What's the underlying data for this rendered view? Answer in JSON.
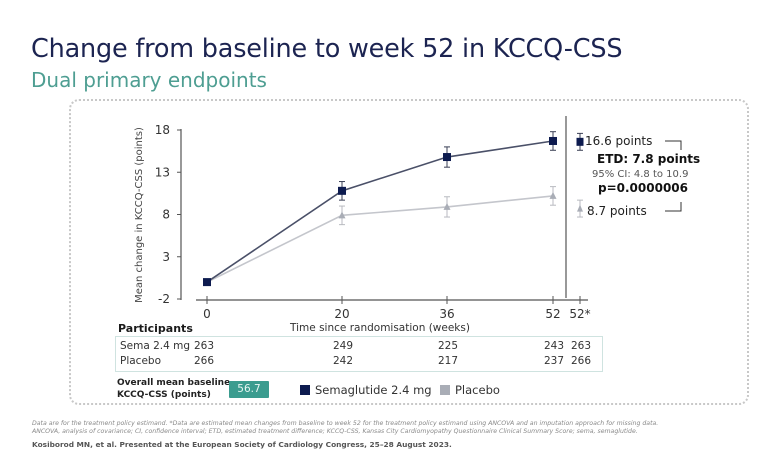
{
  "header": {
    "title": "Change from baseline to week 52 in KCCQ-CSS",
    "subtitle": "Dual primary endpoints"
  },
  "chart_data": {
    "type": "line",
    "title": "Change from baseline to week 52 in KCCQ-CSS",
    "xlabel": "Time since randomisation (weeks)",
    "ylabel": "Mean change in KCCQ-CSS (points)",
    "x_ticks": [
      "0",
      "20",
      "36",
      "52",
      "52*"
    ],
    "y_ticks": [
      "18",
      "13",
      "8",
      "3",
      "-2"
    ],
    "ylim": [
      -2,
      18
    ],
    "x": [
      0,
      20,
      36,
      52
    ],
    "series": [
      {
        "name": "Semaglutide 2.4 mg",
        "color": "#0d1b4f",
        "marker": "square",
        "values": [
          0,
          10.8,
          14.8,
          16.7
        ],
        "ci_halfwidth": [
          0,
          1.1,
          1.2,
          1.1
        ],
        "endpoint_52star": 16.6,
        "endpoint_ci_halfwidth": 1.0
      },
      {
        "name": "Placebo",
        "color": "#a9adb6",
        "marker": "triangle",
        "values": [
          0,
          7.9,
          8.9,
          10.2
        ],
        "ci_halfwidth": [
          0,
          1.1,
          1.2,
          1.1
        ],
        "endpoint_52star": 8.7,
        "endpoint_ci_halfwidth": 1.0
      }
    ],
    "annotations": {
      "sema_endpoint": "16.6 points",
      "placebo_endpoint": "8.7 points",
      "etd": "ETD: 7.8 points",
      "ci": "95% CI: 4.8 to 10.9",
      "p": "p=0.0000006"
    },
    "grid": false,
    "legend": "bottom"
  },
  "participants": {
    "title": "Participants",
    "rows": [
      {
        "label": "Sema 2.4 mg",
        "values": [
          "263",
          "249",
          "225",
          "243",
          "263"
        ]
      },
      {
        "label": "Placebo",
        "values": [
          "266",
          "242",
          "217",
          "237",
          "266"
        ]
      }
    ]
  },
  "baseline": {
    "label_line1": "Overall mean baseline",
    "label_line2": "KCCQ-CSS (points)",
    "value": "56.7",
    "badge_color": "#3b9c8f"
  },
  "legend": {
    "items": [
      {
        "label": "Semaglutide 2.4 mg",
        "color": "#0d1b4f"
      },
      {
        "label": "Placebo",
        "color": "#a9adb6"
      }
    ]
  },
  "footnotes": {
    "line1": "Data are for the treatment policy estimand. *Data are estimated mean changes from baseline to week 52 for the treatment policy estimand using ANCOVA and an imputation approach for missing data.",
    "line2": "ANCOVA, analysis of covariance; CI, confidence interval; ETD, estimated treatment difference; KCCQ-CSS, Kansas City Cardiomyopathy Questionnaire Clinical Summary Score; sema, semaglutide.",
    "citation": "Kosiborod MN, et al. Presented at the European Society of Cardiology Congress, 25–28 August 2023."
  }
}
